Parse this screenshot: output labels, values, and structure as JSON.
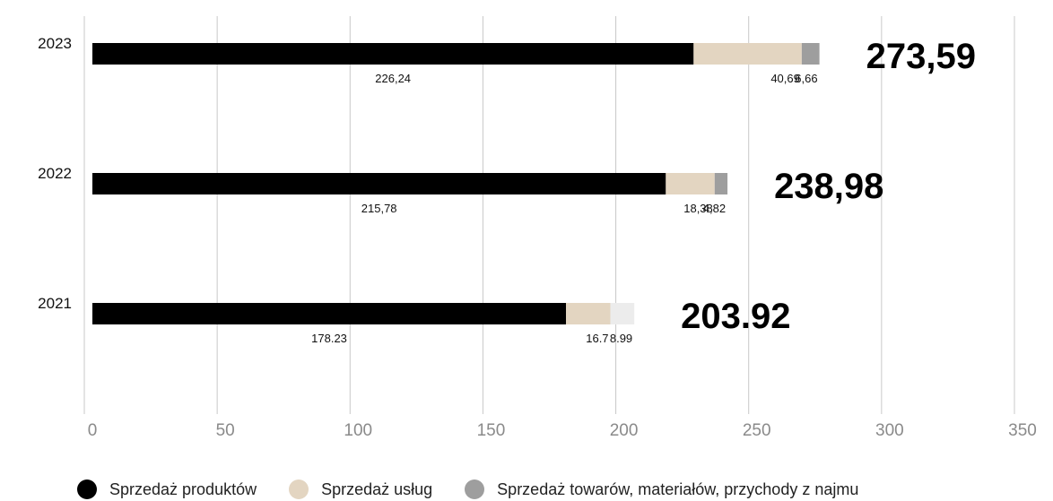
{
  "chart_data": {
    "type": "bar",
    "orientation": "horizontal",
    "stacked": true,
    "categories": [
      "2023",
      "2022",
      "2021"
    ],
    "series": [
      {
        "name": "Sprzedaż produktów",
        "color": "#000000",
        "values": [
          226.24,
          215.78,
          178.23
        ],
        "labels": [
          "226,24",
          "215,78",
          "178.23"
        ]
      },
      {
        "name": "Sprzedaż usług",
        "color": "#e3d5c1",
        "values": [
          40.69,
          18.38,
          16.7
        ],
        "labels": [
          "40,69",
          "18,38",
          "16.7"
        ]
      },
      {
        "name": "Sprzedaż towarów, materiałów, przychody z najmu",
        "color": "#9e9e9e",
        "values": [
          6.66,
          4.82,
          8.99
        ],
        "labels": [
          "6,66",
          "4,82",
          "8.99"
        ],
        "point_colors": [
          "#9e9e9e",
          "#9e9e9e",
          "#ececec"
        ]
      }
    ],
    "totals": [
      "273,59",
      "238,98",
      "203.92"
    ],
    "xlim": [
      0,
      350
    ],
    "xticks": [
      0,
      50,
      100,
      150,
      200,
      250,
      300,
      350
    ],
    "xtick_labels": [
      "0",
      "50",
      "100",
      "150",
      "200",
      "250",
      "300",
      "350"
    ],
    "grid": "vertical",
    "legend_position": "bottom"
  }
}
